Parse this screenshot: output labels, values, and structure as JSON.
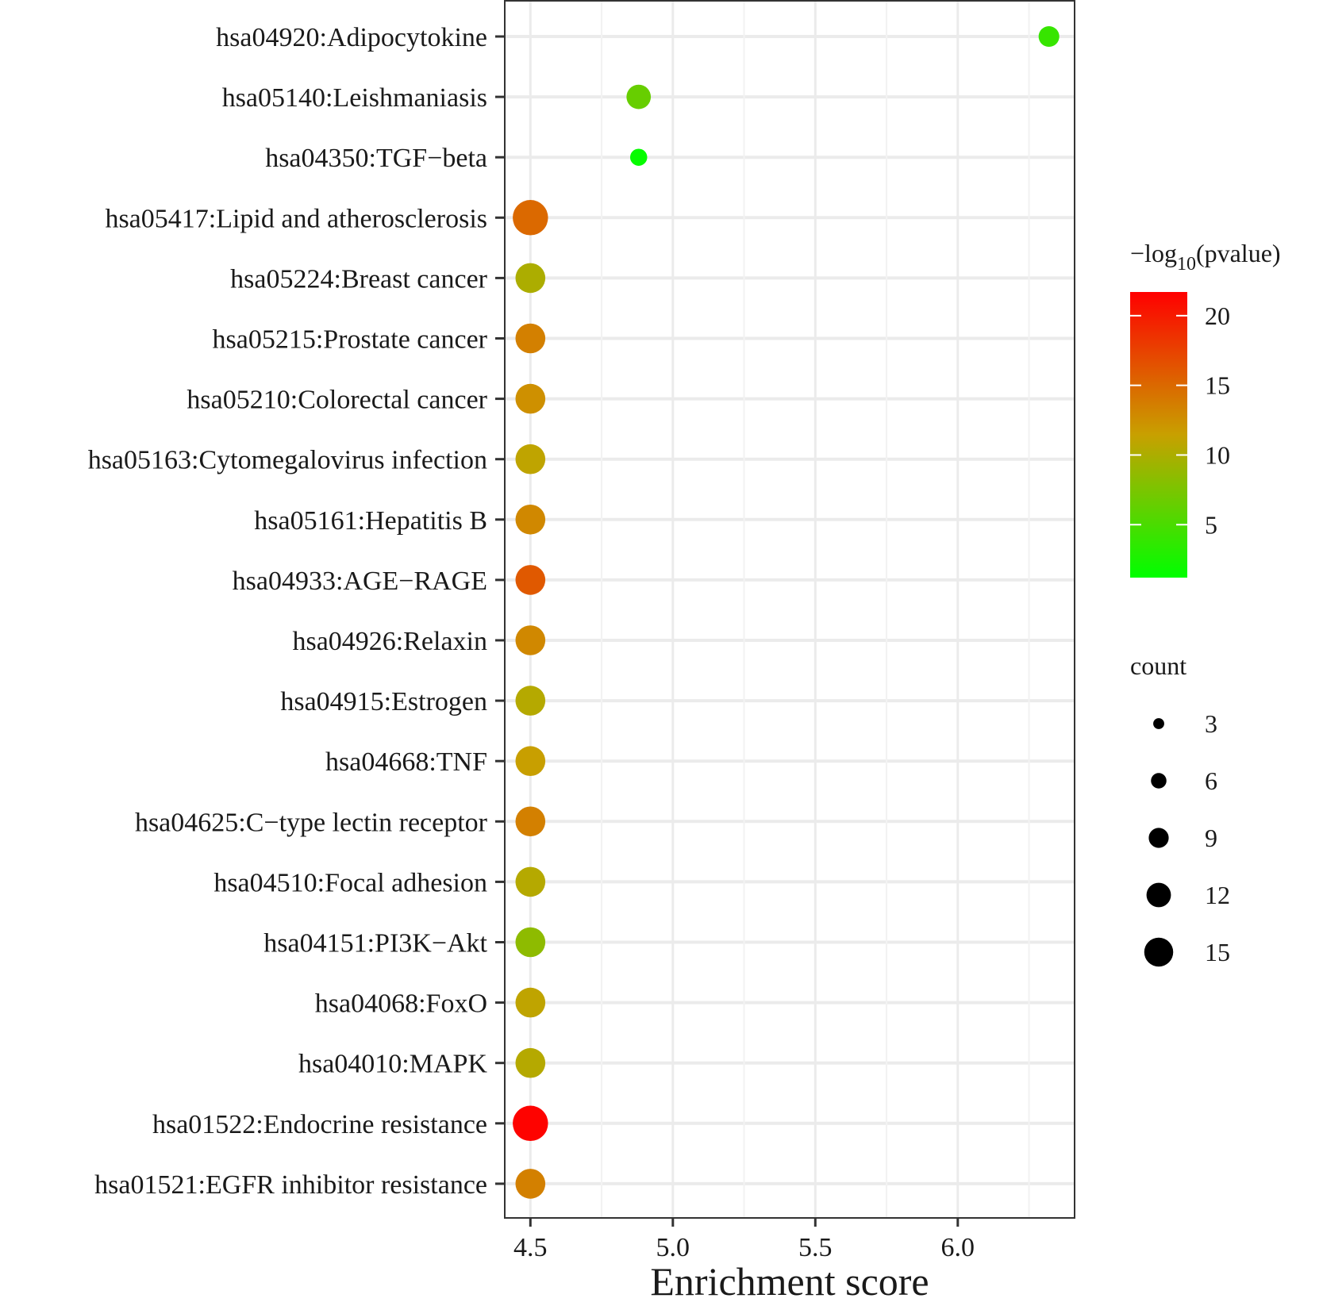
{
  "chart_data": {
    "type": "scatter",
    "title": "",
    "xlabel": "Enrichment score",
    "ylabel": "",
    "xlim": [
      4.41,
      6.41
    ],
    "x_ticks": [
      "4.5",
      "5.0",
      "5.5",
      "6.0"
    ],
    "x_tick_values": [
      4.5,
      5.0,
      5.5,
      6.0
    ],
    "grid": true,
    "legend_placement": "right",
    "color_scale": {
      "title_prefix": "−log",
      "title_subscript": "10",
      "title_suffix": "(pvalue)",
      "min": 1.2,
      "max": 21.7,
      "ticks": [
        "20",
        "15",
        "10",
        "5"
      ],
      "tick_values": [
        20,
        15,
        10,
        5
      ],
      "low_color": "#00ff00",
      "high_color": "#ff0000"
    },
    "size_legend": {
      "title": "count",
      "values": [
        3,
        6,
        9,
        12,
        15
      ],
      "labels": [
        "3",
        "6",
        "9",
        "12",
        "15"
      ]
    },
    "points": [
      {
        "label": "hsa04920:Adipocytokine",
        "x": 6.32,
        "count": 7,
        "neg_log10_p": 4.0
      },
      {
        "label": "hsa05140:Leishmaniasis",
        "x": 4.88,
        "count": 9,
        "neg_log10_p": 6.5
      },
      {
        "label": "hsa04350:TGF−beta",
        "x": 4.88,
        "count": 5,
        "neg_log10_p": 1.5
      },
      {
        "label": "hsa05417:Lipid and atherosclerosis",
        "x": 4.5,
        "count": 15,
        "neg_log10_p": 15.0
      },
      {
        "label": "hsa05224:Breast cancer",
        "x": 4.5,
        "count": 12,
        "neg_log10_p": 10.0
      },
      {
        "label": "hsa05215:Prostate cancer",
        "x": 4.5,
        "count": 12,
        "neg_log10_p": 13.5
      },
      {
        "label": "hsa05210:Colorectal cancer",
        "x": 4.5,
        "count": 12,
        "neg_log10_p": 12.5
      },
      {
        "label": "hsa05163:Cytomegalovirus infection",
        "x": 4.5,
        "count": 12,
        "neg_log10_p": 11.0
      },
      {
        "label": "hsa05161:Hepatitis B",
        "x": 4.5,
        "count": 12,
        "neg_log10_p": 13.0
      },
      {
        "label": "hsa04933:AGE−RAGE",
        "x": 4.5,
        "count": 12,
        "neg_log10_p": 16.0
      },
      {
        "label": "hsa04926:Relaxin",
        "x": 4.5,
        "count": 12,
        "neg_log10_p": 13.0
      },
      {
        "label": "hsa04915:Estrogen",
        "x": 4.5,
        "count": 12,
        "neg_log10_p": 10.5
      },
      {
        "label": "hsa04668:TNF",
        "x": 4.5,
        "count": 12,
        "neg_log10_p": 11.5
      },
      {
        "label": "hsa04625:C−type lectin receptor",
        "x": 4.5,
        "count": 12,
        "neg_log10_p": 13.5
      },
      {
        "label": "hsa04510:Focal adhesion",
        "x": 4.5,
        "count": 12,
        "neg_log10_p": 10.5
      },
      {
        "label": "hsa04151:PI3K−Akt",
        "x": 4.5,
        "count": 12,
        "neg_log10_p": 8.5
      },
      {
        "label": "hsa04068:FoxO",
        "x": 4.5,
        "count": 12,
        "neg_log10_p": 11.0
      },
      {
        "label": "hsa04010:MAPK",
        "x": 4.5,
        "count": 12,
        "neg_log10_p": 10.5
      },
      {
        "label": "hsa01522:Endocrine resistance",
        "x": 4.5,
        "count": 15,
        "neg_log10_p": 21.5
      },
      {
        "label": "hsa01521:EGFR inhibitor resistance",
        "x": 4.5,
        "count": 12,
        "neg_log10_p": 13.5
      }
    ]
  }
}
